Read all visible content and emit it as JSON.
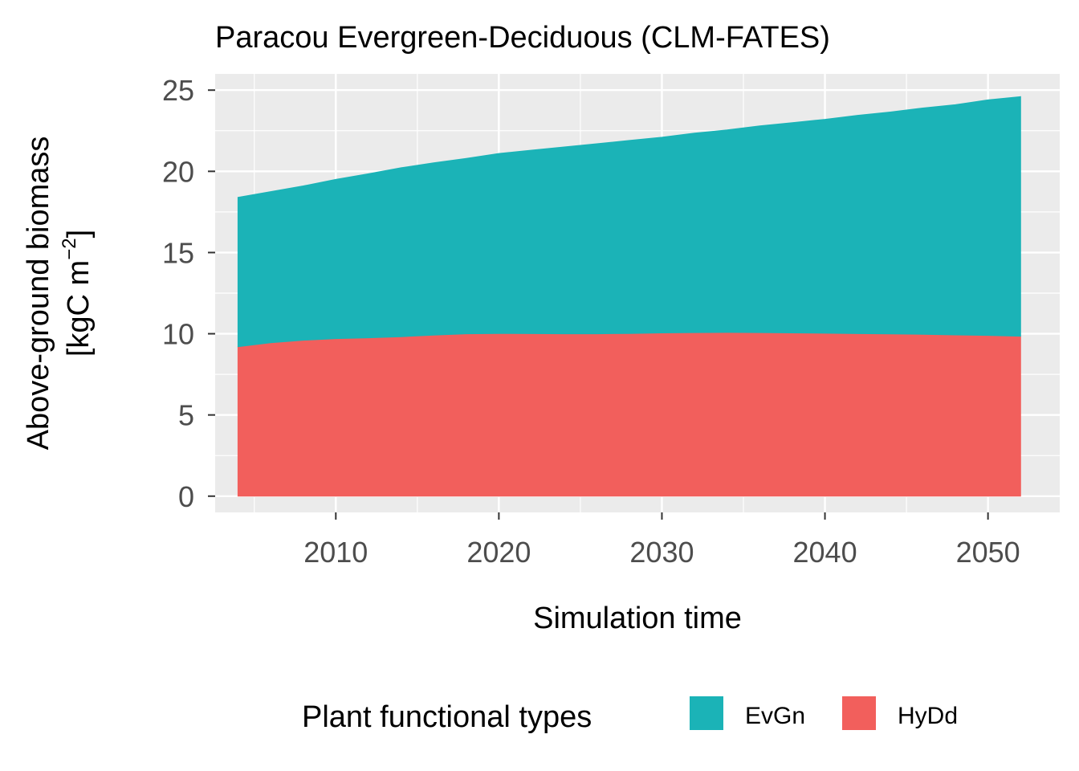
{
  "chart_data": {
    "type": "area",
    "stacked": true,
    "title": "Paracou Evergreen-Deciduous (CLM-FATES)",
    "xlabel": "Simulation time",
    "ylabel_line1": "Above-ground biomass",
    "ylabel_line2_prefix": "[kgC m",
    "ylabel_superscript": "−2",
    "ylabel_line2_suffix": "]",
    "xlim": [
      2002.6,
      2054.4
    ],
    "ylim": [
      -1.0,
      26.0
    ],
    "x_ticks": [
      2010,
      2020,
      2030,
      2040,
      2050
    ],
    "x_tick_labels": [
      "2010",
      "2020",
      "2030",
      "2040",
      "2050"
    ],
    "y_ticks": [
      0,
      5,
      10,
      15,
      20,
      25
    ],
    "y_tick_labels": [
      "0",
      "5",
      "10",
      "15",
      "20",
      "25"
    ],
    "grid": true,
    "legend_title": "Plant functional types",
    "legend_position": "bottom",
    "x": [
      2004,
      2006,
      2008,
      2010,
      2012,
      2014,
      2016,
      2018,
      2020,
      2022,
      2024,
      2026,
      2028,
      2030,
      2032,
      2034,
      2036,
      2038,
      2040,
      2042,
      2044,
      2046,
      2048,
      2050,
      2052
    ],
    "series": [
      {
        "name": "HyDd",
        "color": "#F25F5C",
        "values": [
          9.2,
          9.45,
          9.6,
          9.7,
          9.75,
          9.82,
          9.92,
          10.0,
          10.02,
          10.01,
          10.0,
          10.0,
          10.02,
          10.05,
          10.07,
          10.08,
          10.07,
          10.05,
          10.03,
          10.01,
          9.99,
          9.97,
          9.93,
          9.9,
          9.85
        ]
      },
      {
        "name": "EvGn",
        "color": "#1BB3B7",
        "values": [
          9.2,
          9.3,
          9.5,
          9.8,
          10.1,
          10.4,
          10.6,
          10.8,
          11.08,
          11.29,
          11.5,
          11.7,
          11.88,
          12.05,
          12.28,
          12.47,
          12.73,
          12.95,
          13.17,
          13.44,
          13.66,
          13.93,
          14.17,
          14.5,
          14.75
        ]
      }
    ]
  }
}
